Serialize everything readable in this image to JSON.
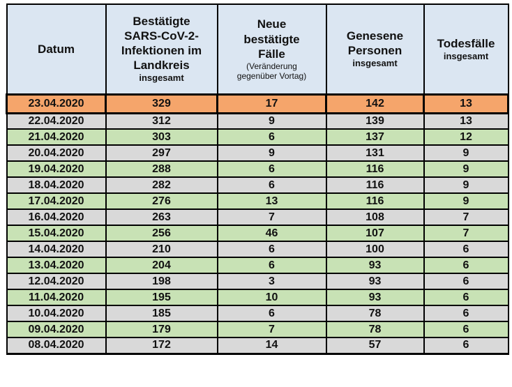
{
  "colors": {
    "page-bg": "#ffffff",
    "header-bg": "#dbe6f2",
    "highlight-row": "#f5a56b",
    "row-gray": "#d9d9d9",
    "row-green": "#c8e2b5",
    "grid": "#000000",
    "text": "#111111"
  },
  "table": {
    "columns": [
      {
        "key": "datum",
        "label": "Datum",
        "sublabel": ""
      },
      {
        "key": "confirmed",
        "label": "Bestätigte\nSARS-CoV-2-\nInfektionen im\nLandkreis",
        "sublabel": "insgesamt"
      },
      {
        "key": "new_cases",
        "label": "Neue\nbestätigte\nFälle",
        "sublabel": "(Veränderung\ngegenüber Vortag)"
      },
      {
        "key": "recovered",
        "label": "Genesene\nPersonen",
        "sublabel": "insgesamt"
      },
      {
        "key": "deaths",
        "label": "Todesfälle",
        "sublabel": "insgesamt"
      }
    ],
    "rows": [
      {
        "band": "highlight",
        "datum": "23.04.2020",
        "confirmed": "329",
        "new_cases": "17",
        "recovered": "142",
        "deaths": "13"
      },
      {
        "band": "gray",
        "datum": "22.04.2020",
        "confirmed": "312",
        "new_cases": "9",
        "recovered": "139",
        "deaths": "13"
      },
      {
        "band": "green",
        "datum": "21.04.2020",
        "confirmed": "303",
        "new_cases": "6",
        "recovered": "137",
        "deaths": "12"
      },
      {
        "band": "gray",
        "datum": "20.04.2020",
        "confirmed": "297",
        "new_cases": "9",
        "recovered": "131",
        "deaths": "9"
      },
      {
        "band": "green",
        "datum": "19.04.2020",
        "confirmed": "288",
        "new_cases": "6",
        "recovered": "116",
        "deaths": "9"
      },
      {
        "band": "gray",
        "datum": "18.04.2020",
        "confirmed": "282",
        "new_cases": "6",
        "recovered": "116",
        "deaths": "9"
      },
      {
        "band": "green",
        "datum": "17.04.2020",
        "confirmed": "276",
        "new_cases": "13",
        "recovered": "116",
        "deaths": "9"
      },
      {
        "band": "gray",
        "datum": "16.04.2020",
        "confirmed": "263",
        "new_cases": "7",
        "recovered": "108",
        "deaths": "7"
      },
      {
        "band": "green",
        "datum": "15.04.2020",
        "confirmed": "256",
        "new_cases": "46",
        "recovered": "107",
        "deaths": "7"
      },
      {
        "band": "gray",
        "datum": "14.04.2020",
        "confirmed": "210",
        "new_cases": "6",
        "recovered": "100",
        "deaths": "6"
      },
      {
        "band": "green",
        "datum": "13.04.2020",
        "confirmed": "204",
        "new_cases": "6",
        "recovered": "93",
        "deaths": "6"
      },
      {
        "band": "gray",
        "datum": "12.04.2020",
        "confirmed": "198",
        "new_cases": "3",
        "recovered": "93",
        "deaths": "6"
      },
      {
        "band": "green",
        "datum": "11.04.2020",
        "confirmed": "195",
        "new_cases": "10",
        "recovered": "93",
        "deaths": "6"
      },
      {
        "band": "gray",
        "datum": "10.04.2020",
        "confirmed": "185",
        "new_cases": "6",
        "recovered": "78",
        "deaths": "6"
      },
      {
        "band": "green",
        "datum": "09.04.2020",
        "confirmed": "179",
        "new_cases": "7",
        "recovered": "78",
        "deaths": "6"
      },
      {
        "band": "gray",
        "datum": "08.04.2020",
        "confirmed": "172",
        "new_cases": "14",
        "recovered": "57",
        "deaths": "6"
      }
    ]
  }
}
